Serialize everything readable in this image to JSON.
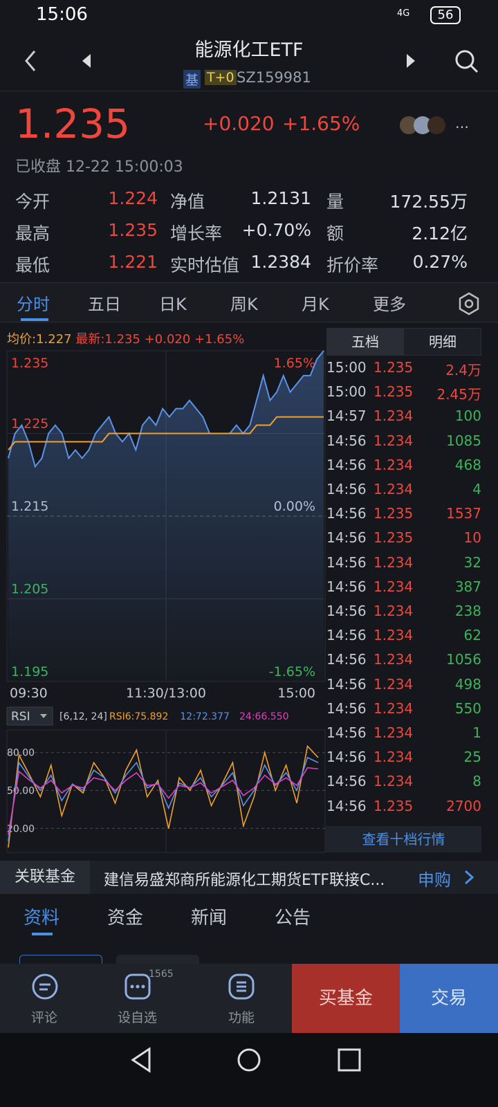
{
  "status_bar": {
    "time": "15:06",
    "network": "4G",
    "battery": "56"
  },
  "header": {
    "title": "能源化工ETF",
    "tags": [
      "基",
      "T+0"
    ],
    "code": "SZ159981"
  },
  "quote": {
    "price": "1.235",
    "change": "+0.020",
    "change_pct": "+1.65%",
    "state": "已收盘 12-22 15:00:03"
  },
  "stats": [
    [
      "今开",
      "1.224"
    ],
    [
      "净值",
      "1.2131"
    ],
    [
      "量",
      "172.55万"
    ],
    [
      "最高",
      "1.235"
    ],
    [
      "增长率",
      "+0.70%"
    ],
    [
      "额",
      "2.12亿"
    ],
    [
      "最低",
      "1.221"
    ],
    [
      "实时估值",
      "1.2384"
    ],
    [
      "折价率",
      "0.27%"
    ]
  ],
  "tabs": [
    "分时",
    "五日",
    "日K",
    "周K",
    "月K",
    "更多"
  ],
  "chart_legend": [
    "均价:1.227",
    "最新:1.235",
    "+0.020",
    "+1.65%"
  ],
  "chart_data": [
    {
      "type": "line",
      "ylim": [
        1.195,
        1.235
      ],
      "yticks": [
        1.195,
        1.205,
        1.215,
        1.225,
        1.235
      ],
      "y2ticks": [
        {
          "value": 1.195,
          "label": "-1.65%"
        },
        {
          "value": 1.215,
          "label": "0.00%"
        },
        {
          "value": 1.235,
          "label": "1.65%"
        }
      ],
      "x_labels": [
        "09:30",
        "11:30/13:00",
        "15:00"
      ],
      "series": [
        {
          "color": "#5b93e8",
          "values": [
            1.222,
            1.225,
            1.226,
            1.224,
            1.221,
            1.222,
            1.225,
            1.226,
            1.225,
            1.222,
            1.223,
            1.222,
            1.223,
            1.225,
            1.226,
            1.227,
            1.225,
            1.224,
            1.225,
            1.223,
            1.226,
            1.227,
            1.226,
            1.228,
            1.227,
            1.228,
            1.228,
            1.229,
            1.228,
            1.227,
            1.225,
            1.225,
            1.225,
            1.225,
            1.226,
            1.225,
            1.226,
            1.229,
            1.232,
            1.229,
            1.23,
            1.232,
            1.23,
            1.231,
            1.232,
            1.232,
            1.234,
            1.235
          ]
        },
        {
          "color": "#f0a030",
          "values": [
            1.223,
            1.224,
            1.224,
            1.224,
            1.224,
            1.224,
            1.224,
            1.224,
            1.224,
            1.224,
            1.224,
            1.224,
            1.224,
            1.224,
            1.224,
            1.225,
            1.225,
            1.225,
            1.225,
            1.225,
            1.225,
            1.225,
            1.225,
            1.225,
            1.225,
            1.225,
            1.225,
            1.225,
            1.225,
            1.225,
            1.225,
            1.225,
            1.225,
            1.225,
            1.225,
            1.225,
            1.225,
            1.226,
            1.226,
            1.226,
            1.227,
            1.227,
            1.227,
            1.227,
            1.227,
            1.227,
            1.227,
            1.227
          ]
        }
      ]
    },
    {
      "type": "line",
      "title": "RSI",
      "params": "[6,12, 24]",
      "ylim": [
        0,
        100
      ],
      "yticks": [
        {
          "value": 20,
          "label": "20.00"
        },
        {
          "value": 50,
          "label": "50.00"
        },
        {
          "value": 80,
          "label": "80.00"
        }
      ],
      "series": [
        {
          "label": "RSI6:75.892",
          "color": "#f0a030",
          "values": [
            5,
            78,
            62,
            45,
            70,
            30,
            55,
            48,
            72,
            60,
            40,
            66,
            82,
            45,
            58,
            20,
            60,
            50,
            66,
            38,
            55,
            72,
            22,
            45,
            80,
            50,
            70,
            40,
            85,
            76
          ]
        },
        {
          "label": "12:72.377",
          "color": "#5b93e8",
          "values": [
            10,
            72,
            60,
            50,
            62,
            42,
            55,
            50,
            66,
            60,
            48,
            62,
            72,
            52,
            56,
            36,
            56,
            52,
            60,
            45,
            54,
            64,
            38,
            50,
            70,
            54,
            64,
            50,
            76,
            72
          ]
        },
        {
          "label": "24:66.550",
          "color": "#e040c0",
          "values": [
            15,
            65,
            58,
            52,
            58,
            48,
            54,
            52,
            60,
            58,
            50,
            58,
            64,
            54,
            55,
            44,
            54,
            52,
            56,
            48,
            53,
            58,
            46,
            52,
            62,
            55,
            60,
            54,
            68,
            67
          ]
        }
      ]
    }
  ],
  "order_book": {
    "tabs": [
      "五档",
      "明细"
    ],
    "rows": [
      {
        "time": "15:00",
        "price": "1.235",
        "volume": "2.4万",
        "color": "#f0463c"
      },
      {
        "time": "15:00",
        "price": "1.235",
        "volume": "2.45万",
        "color": "#f0463c"
      },
      {
        "time": "14:57",
        "price": "1.234",
        "volume": "100",
        "color": "#3cb55a"
      },
      {
        "time": "14:56",
        "price": "1.234",
        "volume": "1085",
        "color": "#3cb55a"
      },
      {
        "time": "14:56",
        "price": "1.234",
        "volume": "468",
        "color": "#3cb55a"
      },
      {
        "time": "14:56",
        "price": "1.234",
        "volume": "4",
        "color": "#3cb55a"
      },
      {
        "time": "14:56",
        "price": "1.235",
        "volume": "1537",
        "color": "#f0463c"
      },
      {
        "time": "14:56",
        "price": "1.235",
        "volume": "10",
        "color": "#f0463c"
      },
      {
        "time": "14:56",
        "price": "1.234",
        "volume": "32",
        "color": "#3cb55a"
      },
      {
        "time": "14:56",
        "price": "1.234",
        "volume": "387",
        "color": "#3cb55a"
      },
      {
        "time": "14:56",
        "price": "1.234",
        "volume": "238",
        "color": "#3cb55a"
      },
      {
        "time": "14:56",
        "price": "1.234",
        "volume": "62",
        "color": "#3cb55a"
      },
      {
        "time": "14:56",
        "price": "1.234",
        "volume": "1056",
        "color": "#3cb55a"
      },
      {
        "time": "14:56",
        "price": "1.234",
        "volume": "498",
        "color": "#3cb55a"
      },
      {
        "time": "14:56",
        "price": "1.234",
        "volume": "550",
        "color": "#3cb55a"
      },
      {
        "time": "14:56",
        "price": "1.234",
        "volume": "1",
        "color": "#3cb55a"
      },
      {
        "time": "14:56",
        "price": "1.234",
        "volume": "25",
        "color": "#3cb55a"
      },
      {
        "time": "14:56",
        "price": "1.234",
        "volume": "8",
        "color": "#3cb55a"
      },
      {
        "time": "14:56",
        "price": "1.235",
        "volume": "2700",
        "color": "#f0463c"
      }
    ],
    "more": "查看十档行情"
  },
  "related": {
    "label": "关联基金",
    "name": "建信易盛郑商所能源化工期货ETF联接C...",
    "action": "申购"
  },
  "info_tabs": [
    "资料",
    "资金",
    "新闻",
    "公告"
  ],
  "bottom_bar": {
    "items": [
      "评论",
      "设自选",
      "功能"
    ],
    "badge": "1565",
    "buy": "买基金",
    "trade": "交易"
  }
}
